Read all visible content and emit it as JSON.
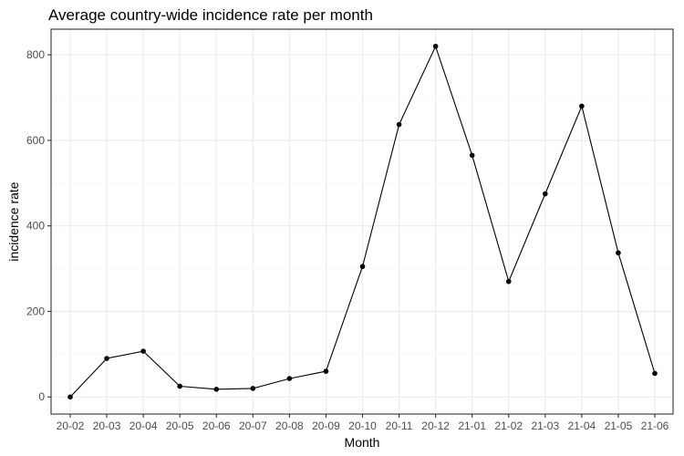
{
  "chart_data": {
    "type": "line",
    "title": "Average country-wide incidence rate per month",
    "xlabel": "Month",
    "ylabel": "incidence rate",
    "categories": [
      "20-02",
      "20-03",
      "20-04",
      "20-05",
      "20-06",
      "20-07",
      "20-08",
      "20-09",
      "20-10",
      "20-11",
      "20-12",
      "21-01",
      "21-02",
      "21-03",
      "21-04",
      "21-05",
      "21-06"
    ],
    "values": [
      0,
      90,
      107,
      25,
      18,
      20,
      43,
      60,
      305,
      637,
      820,
      565,
      270,
      475,
      680,
      337,
      55
    ],
    "ylim": [
      -40,
      860
    ],
    "yticks": [
      0,
      200,
      400,
      600,
      800
    ],
    "ytick_labels": [
      "0",
      "200",
      "400",
      "600",
      "800"
    ],
    "grid": true,
    "colors": {
      "line": "#000000",
      "grid": "#ebebeb",
      "border": "#333333"
    }
  }
}
